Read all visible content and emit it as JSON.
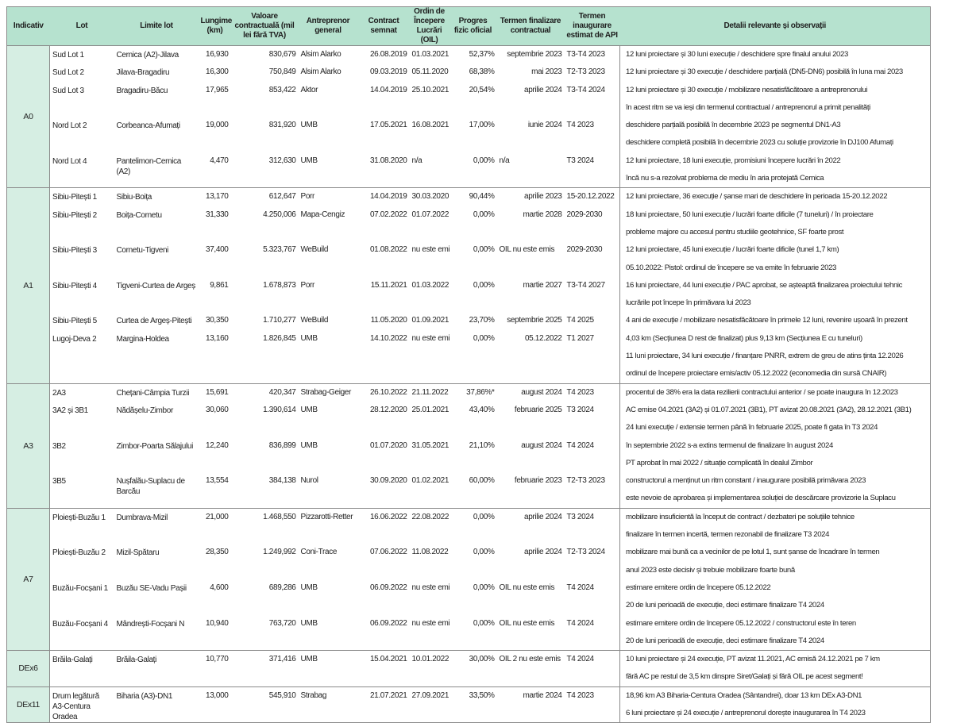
{
  "header": {
    "indicativ": "Indicativ",
    "lot": "Lot",
    "limite": "Limite lot",
    "lungime": "Lungime (km)",
    "valoare": "Valoare contractuală (mil lei fără TVA)",
    "antreprenor": "Antreprenor general",
    "contract": "Contract semnat",
    "oil": "Ordin de Începere Lucrări (OIL)",
    "progres": "Progres fizic oficial",
    "termen": "Termen finalizare contractual",
    "inaugurare": "Termen inaugurare estimat de API",
    "detalii": "Detalii relevante și observații"
  },
  "colors": {
    "header_bg": "#b6e2cf",
    "indicativ_bg": "#d6eee3",
    "border": "#8a8a8a"
  },
  "groups": [
    {
      "indicativ": "A0",
      "lots": [
        {
          "lot": "Sud Lot 1",
          "limite": "Cernica (A2)-Jilava",
          "lungime": "16,930",
          "valoare": "830,679",
          "antreprenor": "Alsim Alarko",
          "contract": "26.08.2019",
          "oil": "01.03.2021",
          "progres": "52,37%",
          "termen": "septembrie 2023",
          "inaugurare": "T3-T4 2023",
          "notes": [
            "12 luni proiectare și 30 luni execuție / deschidere spre finalul anului 2023"
          ]
        },
        {
          "lot": "Sud Lot 2",
          "limite": "Jilava-Bragadiru",
          "lungime": "16,300",
          "valoare": "750,849",
          "antreprenor": "Alsim Alarko",
          "contract": "09.03.2019",
          "oil": "05.11.2020",
          "progres": "68,38%",
          "termen": "mai 2023",
          "inaugurare": "T2-T3 2023",
          "notes": [
            "12 luni proiectare și 30 execuție / deschidere parțială (DN5-DN6) posibilă în luna mai 2023"
          ]
        },
        {
          "lot": "Sud Lot 3",
          "limite": "Bragadiru-Băcu",
          "lungime": "17,965",
          "valoare": "853,422",
          "antreprenor": "Aktor",
          "contract": "14.04.2019",
          "oil": "25.10.2021",
          "progres": "20,54%",
          "termen": "aprilie 2024",
          "inaugurare": "T3-T4 2024",
          "notes": [
            "12 luni proiectare și 30 execuție / mobilizare nesatisfăcătoare a antreprenorului",
            "în acest ritm se va ieși din termenul contractual / antreprenorul a primit penalități"
          ]
        },
        {
          "lot": "Nord Lot 2",
          "limite": "Corbeanca-Afumați",
          "lungime": "19,000",
          "valoare": "831,920",
          "antreprenor": "UMB",
          "contract": "17.05.2021",
          "oil": "16.08.2021",
          "progres": "17,00%",
          "termen": "iunie 2024",
          "inaugurare": "T4 2023",
          "notes": [
            "deschidere parțială posibilă în decembrie 2023 pe segmentul DN1-A3",
            "deschidere completă posibilă în decembrie 2023 cu soluție provizorie în DJ100 Afumați"
          ]
        },
        {
          "lot": "Nord Lot 4",
          "limite": "Pantelimon-Cernica (A2)",
          "lungime": "4,470",
          "valoare": "312,630",
          "antreprenor": "UMB",
          "contract": "31.08.2020",
          "oil": "n/a",
          "progres": "0,00%",
          "termen": "n/a",
          "inaugurare": "T3 2024",
          "notes": [
            "12 luni proiectare, 18 luni execuție, promisiuni începere lucrări în 2022",
            "încă nu s-a rezolvat problema de mediu în aria protejată Cernica"
          ]
        }
      ]
    },
    {
      "indicativ": "A1",
      "lots": [
        {
          "lot": "Sibiu-Pitești 1",
          "limite": "Sibiu-Boița",
          "lungime": "13,170",
          "valoare": "612,647",
          "antreprenor": "Porr",
          "contract": "14.04.2019",
          "oil": "30.03.2020",
          "progres": "90,44%",
          "termen": "aprilie 2023",
          "inaugurare": "15-20.12.2022",
          "notes": [
            "12 luni proiectare, 36 execuție / șanse mari de deschidere în perioada 15-20.12.2022"
          ]
        },
        {
          "lot": "Sibiu-Pitești 2",
          "limite": "Boița-Cornetu",
          "lungime": "31,330",
          "valoare": "4.250,006",
          "antreprenor": "Mapa-Cengiz",
          "contract": "07.02.2022",
          "oil": "01.07.2022",
          "progres": "0,00%",
          "termen": "martie 2028",
          "inaugurare": "2029-2030",
          "notes": [
            "18 luni proiectare, 50 luni execuție / lucrări foarte dificile (7 tuneluri) / în proiectare",
            "probleme majore cu accesul pentru studiile geotehnice, SF foarte prost"
          ]
        },
        {
          "lot": "Sibiu-Pitești 3",
          "limite": "Cornetu-Tigveni",
          "lungime": "37,400",
          "valoare": "5.323,767",
          "antreprenor": "WeBuild",
          "contract": "01.08.2022",
          "oil": "nu este emis",
          "progres": "0,00%",
          "termen": "OIL nu este emis",
          "inaugurare": "2029-2030",
          "notes": [
            "12 luni proiectare, 45 luni execuție / lucrări foarte dificile (tunel 1,7 km)",
            "05.10.2022: Pistol: ordinul de începere se va emite în februarie 2023"
          ]
        },
        {
          "lot": "Sibiu-Pitești 4",
          "limite": "Tigveni-Curtea de Argeș",
          "lungime": "9,861",
          "valoare": "1.678,873",
          "antreprenor": "Porr",
          "contract": "15.11.2021",
          "oil": "01.03.2022",
          "progres": "0,00%",
          "termen": "martie 2027",
          "inaugurare": "T3-T4 2027",
          "notes": [
            "16 luni proiectare, 44 luni execuție / PAC aprobat, se așteaptă finalizarea proiectului tehnic",
            "lucrările pot începe în primăvara lui 2023"
          ]
        },
        {
          "lot": "Sibiu-Pitești 5",
          "limite": "Curtea de Argeș-Pitești",
          "lungime": "30,350",
          "valoare": "1.710,277",
          "antreprenor": "WeBuild",
          "contract": "11.05.2020",
          "oil": "01.09.2021",
          "progres": "23,70%",
          "termen": "septembrie 2025",
          "inaugurare": "T4 2025",
          "notes": [
            "4 ani de execuție / mobilizare nesatisfăcătoare în primele 12 luni, revenire ușoară în prezent"
          ]
        },
        {
          "lot": "Lugoj-Deva 2",
          "limite": "Margina-Holdea",
          "lungime": "13,160",
          "valoare": "1.826,845",
          "antreprenor": "UMB",
          "contract": "14.10.2022",
          "oil": "nu este emis",
          "progres": "0,00%",
          "termen": "05.12.2022",
          "inaugurare": "T1 2027",
          "notes": [
            "4,03 km (Secțiunea D rest de finalizat) plus 9,13 km (Secțiunea E cu tuneluri)",
            "11 luni proiectare, 34 luni execuție / finanțare PNRR, extrem de greu de atins ținta 12.2026",
            "ordinul de începere proiectare emis/activ 05.12.2022 (economedia din sursă CNAIR)"
          ]
        }
      ]
    },
    {
      "indicativ": "A3",
      "lots": [
        {
          "lot": "2A3",
          "limite": "Chețani-Câmpia Turzii",
          "lungime": "15,691",
          "valoare": "420,347",
          "antreprenor": "Strabag-Geiger",
          "contract": "26.10.2022",
          "oil": "21.11.2022",
          "progres": "37,86%*",
          "termen": "august 2024",
          "inaugurare": "T4 2023",
          "notes": [
            "procentul de 38% era la data rezilierii contractului anterior / se poate inaugura în 12.2023"
          ]
        },
        {
          "lot": "3A2 și 3B1",
          "limite": "Nădășelu-Zimbor",
          "lungime": "30,060",
          "valoare": "1.390,614",
          "antreprenor": "UMB",
          "contract": "28.12.2020",
          "oil": "25.01.2021",
          "progres": "43,40%",
          "termen": "februarie 2025",
          "inaugurare": "T3 2024",
          "notes": [
            "AC emise 04.2021 (3A2) și 01.07.2021 (3B1), PT avizat 20.08.2021 (3A2), 28.12.2021 (3B1)",
            "24 luni execuție / extensie termen până în februarie 2025, poate fi gata în T3 2024"
          ]
        },
        {
          "lot": "3B2",
          "limite": "Zimbor-Poarta Sălajului",
          "lungime": "12,240",
          "valoare": "836,899",
          "antreprenor": "UMB",
          "contract": "01.07.2020",
          "oil": "31.05.2021",
          "progres": "21,10%",
          "termen": "august 2024",
          "inaugurare": "T4 2024",
          "notes": [
            "în septembrie 2022 s-a extins termenul de finalizare în august 2024",
            "PT aprobat în mai 2022 / situație complicată în dealul Zimbor"
          ]
        },
        {
          "lot": "3B5",
          "limite": "Nușfalău-Suplacu de Barcău",
          "lungime": "13,554",
          "valoare": "384,138",
          "antreprenor": "Nurol",
          "contract": "30.09.2020",
          "oil": "01.02.2021",
          "progres": "60,00%",
          "termen": "februarie 2023",
          "inaugurare": "T2-T3 2023",
          "notes": [
            "constructorul a menținut un ritm constant / inaugurare posibilă primăvara 2023",
            "este nevoie de aprobarea și implementarea soluției de descărcare provizorie la Suplacu"
          ]
        }
      ]
    },
    {
      "indicativ": "A7",
      "lots": [
        {
          "lot": "Ploiești-Buzău 1",
          "limite": "Dumbrava-Mizil",
          "lungime": "21,000",
          "valoare": "1.468,550",
          "antreprenor": "Pizzarotti-Retter",
          "contract": "16.06.2022",
          "oil": "22.08.2022",
          "progres": "0,00%",
          "termen": "aprilie 2024",
          "inaugurare": "T3 2024",
          "notes": [
            "mobilizare insuficientă la început de contract / dezbateri pe soluțiile tehnice",
            "finalizare în termen incertă, termen rezonabil de finalizare T3 2024"
          ]
        },
        {
          "lot": "Ploiești-Buzău 2",
          "limite": "Mizil-Spătaru",
          "lungime": "28,350",
          "valoare": "1.249,992",
          "antreprenor": "Coni-Trace",
          "contract": "07.06.2022",
          "oil": "11.08.2022",
          "progres": "0,00%",
          "termen": "aprilie 2024",
          "inaugurare": "T2-T3 2024",
          "notes": [
            "mobilizare mai bună ca a vecinilor de pe lotul 1, sunt șanse de încadrare în termen",
            "anul 2023 este decisiv și trebuie mobilizare foarte bună"
          ]
        },
        {
          "lot": "Buzău-Focșani 1",
          "limite": "Buzău SE-Vadu Pașii",
          "lungime": "4,600",
          "valoare": "689,286",
          "antreprenor": "UMB",
          "contract": "06.09.2022",
          "oil": "nu este emis",
          "progres": "0,00%",
          "termen": "OIL nu este emis",
          "inaugurare": "T4 2024",
          "notes": [
            "estimare emitere ordin de începere 05.12.2022",
            "20 de luni perioadă de execuție, deci estimare finalizare T4 2024"
          ]
        },
        {
          "lot": "Buzău-Focșani 4",
          "limite": "Mândrești-Focșani N",
          "lungime": "10,940",
          "valoare": "763,720",
          "antreprenor": "UMB",
          "contract": "06.09.2022",
          "oil": "nu este emis",
          "progres": "0,00%",
          "termen": "OIL nu este emis",
          "inaugurare": "T4 2024",
          "notes": [
            "estimare emitere ordin de începere 05.12.2022 / constructorul este în teren",
            "20 de luni perioadă de execuție, deci estimare finalizare T4 2024"
          ]
        }
      ]
    },
    {
      "indicativ": "DEx6",
      "lots": [
        {
          "lot": "Brăila-Galați",
          "limite": "Brăila-Galați",
          "lungime": "10,770",
          "valoare": "371,416",
          "antreprenor": "UMB",
          "contract": "15.04.2021",
          "oil": "10.01.2022",
          "progres": "30,00%",
          "termen": "OIL 2 nu este emis",
          "inaugurare": "T4 2024",
          "notes": [
            "10 luni proiectare și 24 execuție, PT avizat 11.2021, AC emisă 24.12.2021 pe 7 km",
            "fără AC pe restul de 3,5 km dinspre Siret/Galați și fără OIL pe acest segment!"
          ]
        }
      ]
    },
    {
      "indicativ": "DEx11",
      "lots": [
        {
          "lot": "Drum legătură A3-Centura Oradea",
          "limite": "Biharia (A3)-DN1",
          "lungime": "13,000",
          "valoare": "545,910",
          "antreprenor": "Strabag",
          "contract": "21.07.2021",
          "oil": "27.09.2021",
          "progres": "33,50%",
          "termen": "martie 2024",
          "inaugurare": "T4 2023",
          "notes": [
            "18,96 km A3 Biharia-Centura Oradea (Sântandrei), doar 13 km DEx A3-DN1",
            "6 luni proiectare și 24 execuție / antreprenorul dorește inaugurarea în T4 2023"
          ]
        }
      ]
    }
  ]
}
